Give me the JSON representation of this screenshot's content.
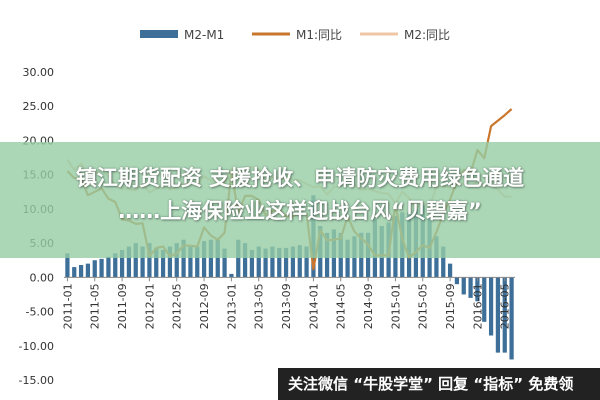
{
  "overlay": {
    "line1": "镇江期货配资 支援抢收、申请防灾费用绿色通道",
    "line2": "……上海保险业这样迎战台风“贝碧嘉”"
  },
  "banner": {
    "text": "关注微信 “牛股学堂” 回复 “指标” 免费领"
  },
  "chart_data": {
    "type": "bar+line",
    "ylim": [
      -15,
      30
    ],
    "yticks": [
      "30.00",
      "25.00",
      "20.00",
      "15.00",
      "10.00",
      "5.00",
      "0.00",
      "-5.00",
      "-10.00",
      "-15.00"
    ],
    "ytick_values": [
      30,
      25,
      20,
      15,
      10,
      5,
      0,
      -5,
      -10,
      -15
    ],
    "xticks": [
      "2011-01",
      "2011-05",
      "2011-09",
      "2012-01",
      "2012-05",
      "2012-09",
      "2013-01",
      "2013-05",
      "2013-09",
      "2014-01",
      "2014-05",
      "2014-09",
      "2015-01",
      "2015-05",
      "2015-09",
      "2016-01",
      "2016-05"
    ],
    "legend": [
      {
        "name": "M2-M1",
        "color": "#3d6f99",
        "kind": "bar"
      },
      {
        "name": "M1:同比",
        "color": "#c9772f",
        "kind": "line"
      },
      {
        "name": "M2:同比",
        "color": "#efc7a6",
        "kind": "line"
      }
    ],
    "legend_position": "top",
    "grid": false,
    "months": [
      "2011-01",
      "2011-02",
      "2011-03",
      "2011-04",
      "2011-05",
      "2011-06",
      "2011-07",
      "2011-08",
      "2011-09",
      "2011-10",
      "2011-11",
      "2011-12",
      "2012-01",
      "2012-02",
      "2012-03",
      "2012-04",
      "2012-05",
      "2012-06",
      "2012-07",
      "2012-08",
      "2012-09",
      "2012-10",
      "2012-11",
      "2012-12",
      "2013-01",
      "2013-02",
      "2013-03",
      "2013-04",
      "2013-05",
      "2013-06",
      "2013-07",
      "2013-08",
      "2013-09",
      "2013-10",
      "2013-11",
      "2013-12",
      "2014-01",
      "2014-02",
      "2014-03",
      "2014-04",
      "2014-05",
      "2014-06",
      "2014-07",
      "2014-08",
      "2014-09",
      "2014-10",
      "2014-11",
      "2014-12",
      "2015-01",
      "2015-02",
      "2015-03",
      "2015-04",
      "2015-05",
      "2015-06",
      "2015-07",
      "2015-08",
      "2015-09",
      "2015-10",
      "2015-11",
      "2015-12",
      "2016-01",
      "2016-02",
      "2016-03",
      "2016-04",
      "2016-05",
      "2016-06"
    ],
    "series": [
      {
        "name": "M2-M1",
        "values": [
          3.5,
          1.5,
          1.8,
          2.0,
          2.5,
          2.7,
          3.0,
          3.5,
          4.0,
          4.5,
          5.0,
          4.5,
          5.0,
          4.3,
          4.0,
          4.5,
          5.0,
          5.5,
          4.5,
          4.5,
          5.3,
          5.5,
          5.5,
          4.2,
          0.5,
          5.5,
          5.0,
          4.0,
          4.5,
          4.2,
          4.5,
          4.3,
          4.3,
          4.5,
          4.7,
          4.5,
          12.0,
          7.5,
          6.5,
          7.0,
          6.5,
          5.5,
          6.0,
          6.5,
          6.5,
          8.5,
          7.5,
          8.0,
          9.0,
          9.5,
          9.5,
          10.0,
          10.5,
          8.5,
          6.0,
          4.5,
          2.0,
          -1.0,
          -2.5,
          -3.0,
          -3.5,
          -6.5,
          -8.5,
          -11.0,
          -11.0,
          -12.0
        ]
      },
      {
        "name": "M1:同比",
        "values": [
          15.5,
          14.5,
          14.5,
          12.0,
          12.5,
          13.0,
          11.5,
          11.0,
          8.5,
          8.3,
          7.8,
          7.9,
          3.1,
          4.3,
          4.5,
          3.1,
          3.5,
          4.7,
          4.6,
          4.5,
          7.3,
          6.1,
          5.5,
          6.5,
          15.3,
          9.5,
          11.9,
          11.9,
          11.3,
          9.1,
          9.7,
          9.9,
          8.9,
          8.9,
          9.4,
          9.3,
          1.2,
          6.9,
          5.4,
          5.5,
          5.7,
          8.9,
          6.7,
          5.7,
          4.8,
          3.2,
          3.2,
          3.2,
          10.6,
          5.6,
          2.9,
          3.7,
          4.7,
          4.3,
          6.6,
          9.3,
          11.4,
          14.0,
          15.7,
          15.2,
          18.6,
          17.4,
          22.1,
          22.9,
          23.7,
          24.6
        ]
      },
      {
        "name": "M2:同比",
        "values": [
          17.2,
          15.7,
          16.6,
          15.3,
          15.1,
          15.9,
          14.7,
          13.5,
          13.0,
          12.9,
          12.7,
          13.6,
          12.4,
          13.0,
          13.4,
          12.8,
          13.2,
          13.6,
          13.9,
          13.5,
          14.8,
          14.1,
          13.9,
          13.8,
          15.9,
          15.2,
          15.7,
          16.1,
          15.8,
          14.0,
          14.5,
          14.7,
          14.2,
          14.3,
          14.2,
          13.6,
          13.2,
          13.3,
          12.1,
          13.2,
          13.4,
          14.7,
          13.5,
          12.8,
          12.9,
          12.6,
          12.3,
          12.2,
          10.8,
          12.5,
          11.6,
          10.1,
          10.8,
          10.2,
          13.3,
          13.3,
          13.1,
          13.5,
          13.7,
          13.3,
          14.0,
          13.3,
          13.4,
          12.8,
          11.8,
          11.8
        ]
      }
    ]
  }
}
